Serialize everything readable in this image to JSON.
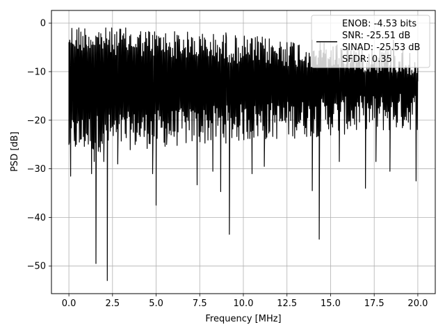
{
  "chart_data": {
    "type": "line",
    "xlabel": "Frequency [MHz]",
    "ylabel": "PSD [dB]",
    "xlim": [
      -1.0,
      21.0
    ],
    "ylim": [
      -55.7,
      2.6
    ],
    "x_ticks": [
      0.0,
      2.5,
      5.0,
      7.5,
      10.0,
      12.5,
      15.0,
      17.5,
      20.0
    ],
    "x_tick_labels": [
      "0.0",
      "2.5",
      "5.0",
      "7.5",
      "10.0",
      "12.5",
      "15.0",
      "17.5",
      "20.0"
    ],
    "y_ticks": [
      0,
      -10,
      -20,
      -30,
      -40,
      -50
    ],
    "y_tick_labels": [
      "0",
      "−10",
      "−20",
      "−30",
      "−40",
      "−50"
    ],
    "grid": true,
    "legend_position": "top-right",
    "legend_lines": [
      "ENOB: -4.53 bits",
      "SNR: -25.51 dB",
      "SINAD: -25.53 dB",
      "SFDR: 0.35"
    ],
    "series": [
      {
        "color": "#000000",
        "x_start": 0.0,
        "x_end": 20.0,
        "noise_band_upper": [
          -3,
          -8
        ],
        "noise_band_lower": [
          -27,
          -22
        ],
        "points": [
          [
            0.0,
            -25.0
          ],
          [
            0.05,
            -3.5
          ],
          [
            0.1,
            -31.5
          ],
          [
            0.2,
            -7.5
          ],
          [
            0.3,
            -22.0
          ],
          [
            0.5,
            -5.5
          ],
          [
            0.6,
            -24.5
          ],
          [
            1.0,
            -4.5
          ],
          [
            1.3,
            -31.0
          ],
          [
            1.45,
            -28.5
          ],
          [
            1.55,
            -49.5
          ],
          [
            1.7,
            -6.0
          ],
          [
            2.0,
            -28.5
          ],
          [
            2.2,
            -53.0
          ],
          [
            2.35,
            -4.5
          ],
          [
            2.8,
            -29.0
          ],
          [
            3.7,
            -22.5
          ],
          [
            4.8,
            -31.0
          ],
          [
            5.0,
            -37.5
          ],
          [
            5.6,
            -25.0
          ],
          [
            6.2,
            -2.5
          ],
          [
            6.9,
            -22.0
          ],
          [
            7.35,
            -33.3
          ],
          [
            8.25,
            -30.5
          ],
          [
            8.7,
            -34.7
          ],
          [
            9.0,
            -2.0
          ],
          [
            9.2,
            -43.5
          ],
          [
            10.5,
            -31.0
          ],
          [
            11.2,
            -29.5
          ],
          [
            12.5,
            -4.0
          ],
          [
            13.95,
            -34.5
          ],
          [
            14.35,
            -44.5
          ],
          [
            15.5,
            -28.5
          ],
          [
            17.0,
            -34.0
          ],
          [
            17.6,
            -28.5
          ],
          [
            18.4,
            -30.5
          ],
          [
            18.6,
            -3.5
          ],
          [
            19.9,
            -32.5
          ],
          [
            20.0,
            -12.0
          ]
        ]
      }
    ]
  }
}
